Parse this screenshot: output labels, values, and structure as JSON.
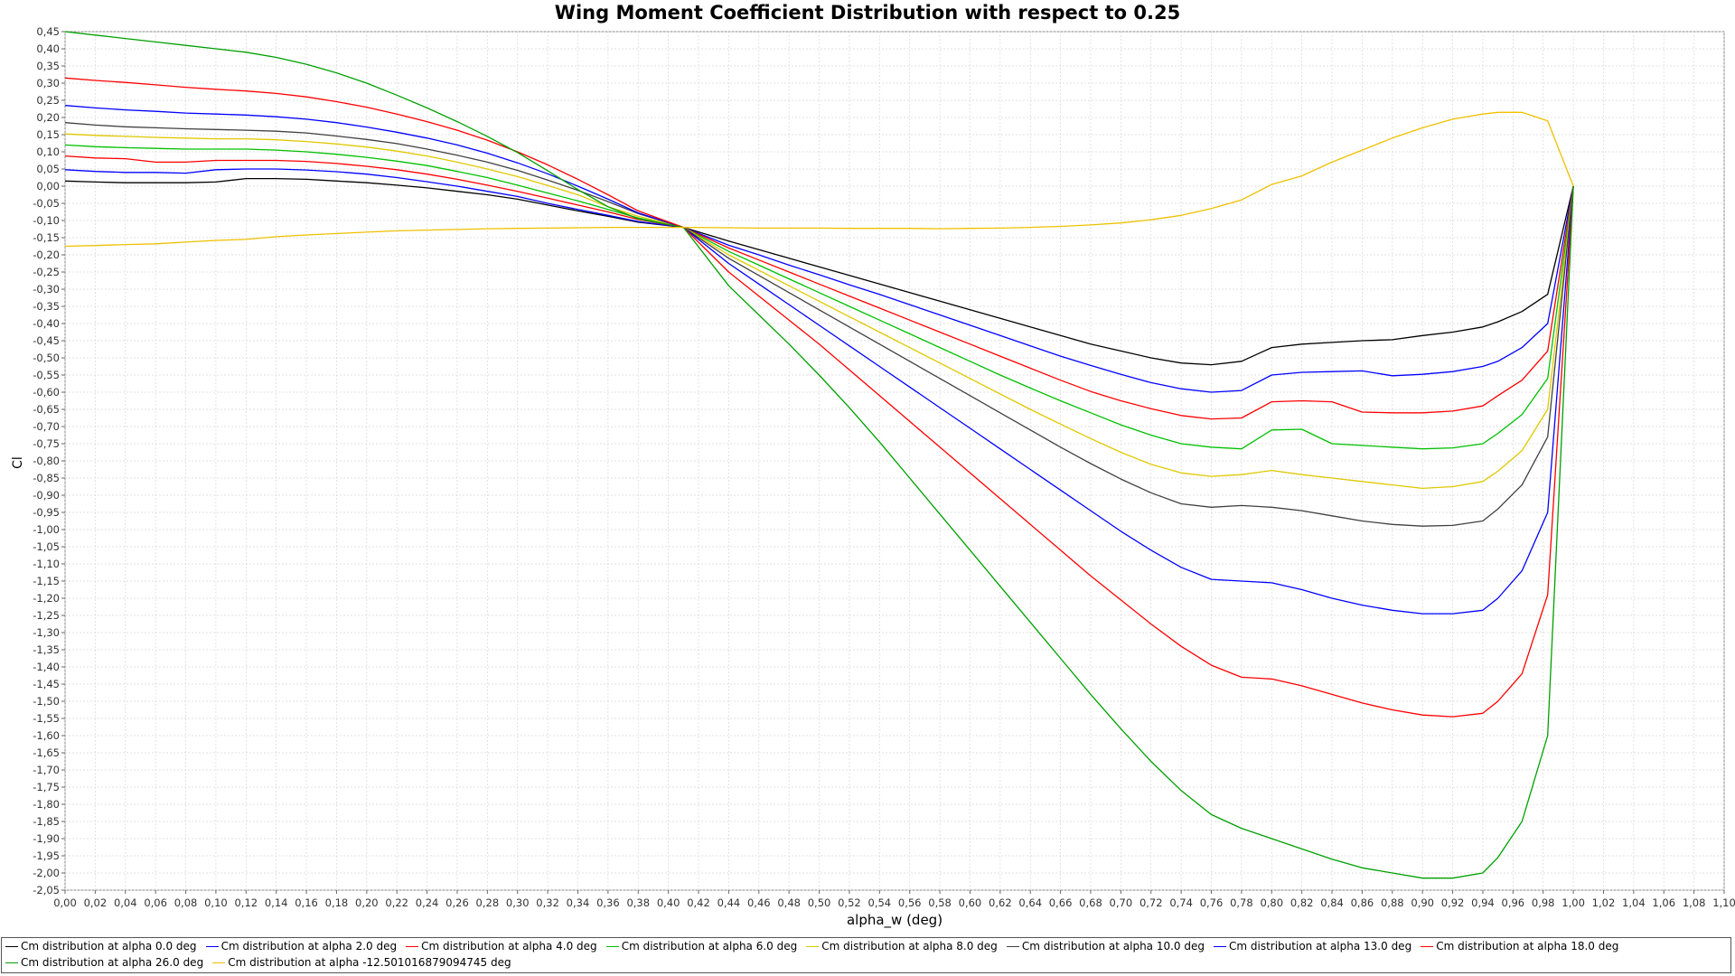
{
  "chart_data": {
    "type": "line",
    "title": "Wing Moment Coefficient Distribution with respect to 0.25",
    "xlabel": "alpha_w (deg)",
    "ylabel": "Cl",
    "xlim": [
      0.0,
      1.1
    ],
    "ylim": [
      -2.05,
      0.45
    ],
    "x_step": 0.02,
    "y_step": 0.05,
    "grid": true,
    "legend_position": "bottom",
    "x": [
      0.0,
      0.02,
      0.04,
      0.06,
      0.08,
      0.1,
      0.12,
      0.14,
      0.16,
      0.18,
      0.2,
      0.22,
      0.24,
      0.26,
      0.28,
      0.3,
      0.32,
      0.34,
      0.36,
      0.38,
      0.41,
      0.44,
      0.46,
      0.48,
      0.5,
      0.52,
      0.54,
      0.56,
      0.58,
      0.6,
      0.62,
      0.64,
      0.66,
      0.68,
      0.7,
      0.72,
      0.74,
      0.76,
      0.78,
      0.8,
      0.82,
      0.84,
      0.86,
      0.88,
      0.9,
      0.92,
      0.94,
      0.95,
      0.966,
      0.983,
      1.0
    ],
    "series": [
      {
        "name": "Cm distribution at alpha 0.0 deg",
        "color": "#000000",
        "values": [
          0.015,
          0.012,
          0.01,
          0.01,
          0.01,
          0.012,
          0.022,
          0.022,
          0.02,
          0.015,
          0.01,
          0.003,
          -0.005,
          -0.015,
          -0.025,
          -0.038,
          -0.055,
          -0.072,
          -0.088,
          -0.105,
          -0.12,
          -0.16,
          -0.185,
          -0.21,
          -0.235,
          -0.26,
          -0.285,
          -0.31,
          -0.335,
          -0.36,
          -0.385,
          -0.41,
          -0.435,
          -0.46,
          -0.48,
          -0.5,
          -0.515,
          -0.52,
          -0.51,
          -0.47,
          -0.46,
          -0.455,
          -0.45,
          -0.447,
          -0.435,
          -0.425,
          -0.41,
          -0.395,
          -0.365,
          -0.315,
          0.0
        ]
      },
      {
        "name": "Cm distribution at alpha 2.0 deg",
        "color": "#0000ff",
        "values": [
          0.048,
          0.043,
          0.04,
          0.04,
          0.038,
          0.048,
          0.05,
          0.05,
          0.047,
          0.042,
          0.035,
          0.025,
          0.013,
          0.0,
          -0.015,
          -0.03,
          -0.05,
          -0.068,
          -0.085,
          -0.103,
          -0.12,
          -0.172,
          -0.2,
          -0.23,
          -0.258,
          -0.287,
          -0.315,
          -0.345,
          -0.375,
          -0.405,
          -0.435,
          -0.465,
          -0.495,
          -0.522,
          -0.548,
          -0.572,
          -0.59,
          -0.6,
          -0.595,
          -0.55,
          -0.542,
          -0.54,
          -0.538,
          -0.552,
          -0.548,
          -0.54,
          -0.525,
          -0.51,
          -0.47,
          -0.4,
          0.0
        ]
      },
      {
        "name": "Cm distribution at alpha 4.0 deg",
        "color": "#ff0000",
        "values": [
          0.088,
          0.082,
          0.08,
          0.07,
          0.07,
          0.075,
          0.075,
          0.075,
          0.072,
          0.066,
          0.058,
          0.048,
          0.035,
          0.02,
          0.003,
          -0.015,
          -0.035,
          -0.055,
          -0.075,
          -0.097,
          -0.12,
          -0.18,
          -0.215,
          -0.25,
          -0.285,
          -0.32,
          -0.355,
          -0.39,
          -0.425,
          -0.46,
          -0.495,
          -0.53,
          -0.565,
          -0.598,
          -0.625,
          -0.648,
          -0.668,
          -0.678,
          -0.675,
          -0.628,
          -0.625,
          -0.628,
          -0.658,
          -0.66,
          -0.66,
          -0.655,
          -0.64,
          -0.61,
          -0.565,
          -0.48,
          0.0
        ]
      },
      {
        "name": "Cm distribution at alpha 6.0 deg",
        "color": "#00c000",
        "values": [
          0.12,
          0.115,
          0.112,
          0.11,
          0.108,
          0.108,
          0.108,
          0.105,
          0.1,
          0.093,
          0.084,
          0.073,
          0.06,
          0.043,
          0.025,
          0.003,
          -0.02,
          -0.043,
          -0.068,
          -0.093,
          -0.12,
          -0.19,
          -0.23,
          -0.27,
          -0.31,
          -0.35,
          -0.39,
          -0.43,
          -0.47,
          -0.51,
          -0.55,
          -0.588,
          -0.625,
          -0.66,
          -0.695,
          -0.725,
          -0.75,
          -0.76,
          -0.765,
          -0.71,
          -0.708,
          -0.75,
          -0.755,
          -0.76,
          -0.765,
          -0.762,
          -0.75,
          -0.72,
          -0.665,
          -0.56,
          0.0
        ]
      },
      {
        "name": "Cm distribution at alpha 8.0 deg",
        "color": "#e0c800",
        "values": [
          0.152,
          0.148,
          0.145,
          0.142,
          0.14,
          0.138,
          0.138,
          0.135,
          0.13,
          0.123,
          0.114,
          0.102,
          0.088,
          0.07,
          0.05,
          0.028,
          0.002,
          -0.025,
          -0.06,
          -0.088,
          -0.12,
          -0.2,
          -0.245,
          -0.29,
          -0.335,
          -0.38,
          -0.425,
          -0.47,
          -0.515,
          -0.56,
          -0.605,
          -0.65,
          -0.693,
          -0.735,
          -0.775,
          -0.81,
          -0.835,
          -0.845,
          -0.84,
          -0.828,
          -0.84,
          -0.85,
          -0.86,
          -0.87,
          -0.88,
          -0.875,
          -0.86,
          -0.83,
          -0.77,
          -0.65,
          0.0
        ]
      },
      {
        "name": "Cm distribution at alpha 10.0 deg",
        "color": "#404040",
        "values": [
          0.185,
          0.178,
          0.173,
          0.17,
          0.167,
          0.165,
          0.163,
          0.16,
          0.155,
          0.146,
          0.136,
          0.124,
          0.108,
          0.09,
          0.07,
          0.046,
          0.018,
          -0.012,
          -0.045,
          -0.08,
          -0.12,
          -0.21,
          -0.26,
          -0.31,
          -0.36,
          -0.41,
          -0.46,
          -0.51,
          -0.56,
          -0.61,
          -0.66,
          -0.71,
          -0.76,
          -0.808,
          -0.853,
          -0.893,
          -0.925,
          -0.935,
          -0.93,
          -0.935,
          -0.945,
          -0.96,
          -0.975,
          -0.985,
          -0.99,
          -0.988,
          -0.975,
          -0.94,
          -0.87,
          -0.73,
          0.0
        ]
      },
      {
        "name": "Cm distribution at alpha 13.0 deg",
        "color": "#0000ff",
        "values": [
          0.235,
          0.228,
          0.222,
          0.218,
          0.213,
          0.21,
          0.207,
          0.202,
          0.195,
          0.185,
          0.172,
          0.157,
          0.14,
          0.12,
          0.096,
          0.068,
          0.036,
          0.0,
          -0.038,
          -0.078,
          -0.12,
          -0.225,
          -0.285,
          -0.345,
          -0.405,
          -0.465,
          -0.525,
          -0.585,
          -0.645,
          -0.705,
          -0.765,
          -0.825,
          -0.885,
          -0.945,
          -1.005,
          -1.06,
          -1.11,
          -1.145,
          -1.15,
          -1.155,
          -1.175,
          -1.2,
          -1.22,
          -1.235,
          -1.245,
          -1.245,
          -1.235,
          -1.2,
          -1.12,
          -0.95,
          0.0
        ]
      },
      {
        "name": "Cm distribution at alpha 18.0 deg",
        "color": "#ff0000",
        "values": [
          0.315,
          0.308,
          0.302,
          0.295,
          0.288,
          0.282,
          0.277,
          0.27,
          0.26,
          0.246,
          0.23,
          0.21,
          0.188,
          0.163,
          0.134,
          0.1,
          0.062,
          0.02,
          -0.025,
          -0.072,
          -0.12,
          -0.25,
          -0.32,
          -0.39,
          -0.46,
          -0.535,
          -0.61,
          -0.685,
          -0.76,
          -0.835,
          -0.91,
          -0.985,
          -1.06,
          -1.135,
          -1.205,
          -1.275,
          -1.34,
          -1.395,
          -1.43,
          -1.435,
          -1.455,
          -1.48,
          -1.505,
          -1.525,
          -1.54,
          -1.545,
          -1.535,
          -1.5,
          -1.42,
          -1.19,
          0.0
        ]
      },
      {
        "name": "Cm distribution at alpha 26.0 deg",
        "color": "#00a000",
        "values": [
          0.45,
          0.44,
          0.43,
          0.42,
          0.41,
          0.4,
          0.39,
          0.375,
          0.355,
          0.33,
          0.3,
          0.265,
          0.228,
          0.188,
          0.145,
          0.098,
          0.045,
          -0.01,
          -0.06,
          -0.095,
          -0.12,
          -0.29,
          -0.375,
          -0.46,
          -0.55,
          -0.645,
          -0.745,
          -0.85,
          -0.955,
          -1.06,
          -1.165,
          -1.27,
          -1.375,
          -1.48,
          -1.58,
          -1.675,
          -1.76,
          -1.83,
          -1.87,
          -1.9,
          -1.93,
          -1.96,
          -1.985,
          -2.0,
          -2.015,
          -2.015,
          -2.0,
          -1.955,
          -1.85,
          -1.6,
          0.0
        ]
      },
      {
        "name": "Cm distribution at alpha -12.501016879094745 deg",
        "color": "#f0c000",
        "values": [
          -0.175,
          -0.173,
          -0.17,
          -0.168,
          -0.163,
          -0.158,
          -0.155,
          -0.147,
          -0.142,
          -0.138,
          -0.134,
          -0.13,
          -0.128,
          -0.126,
          -0.124,
          -0.123,
          -0.122,
          -0.121,
          -0.12,
          -0.12,
          -0.12,
          -0.121,
          -0.122,
          -0.122,
          -0.122,
          -0.123,
          -0.123,
          -0.123,
          -0.124,
          -0.123,
          -0.122,
          -0.12,
          -0.117,
          -0.113,
          -0.107,
          -0.098,
          -0.085,
          -0.065,
          -0.04,
          0.005,
          0.03,
          0.07,
          0.105,
          0.14,
          0.17,
          0.195,
          0.21,
          0.215,
          0.215,
          0.19,
          0.0
        ]
      }
    ]
  }
}
